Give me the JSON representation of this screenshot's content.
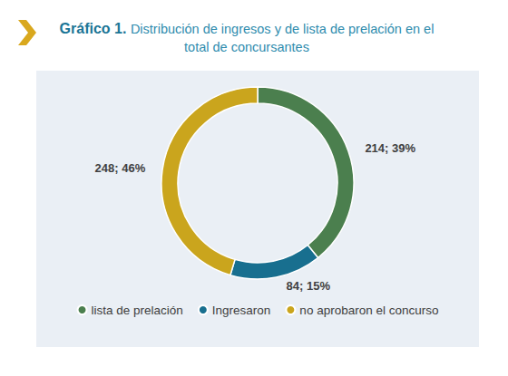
{
  "chart_data": {
    "type": "pie",
    "title": "Gráfico 1.",
    "subtitle": "Distribución de ingresos y de lista de prelación en el total de concursantes",
    "categories": [
      "lista de prelación",
      "Ingresaron",
      "no aprobaron el concurso"
    ],
    "values": [
      214,
      84,
      248
    ],
    "value_labels": [
      "214; 39%",
      "84; 15%",
      "248; 46%"
    ],
    "colors": [
      "#4b7f4e",
      "#186f8f",
      "#caa51d"
    ],
    "data_labels": true,
    "legend": "bottom"
  }
}
